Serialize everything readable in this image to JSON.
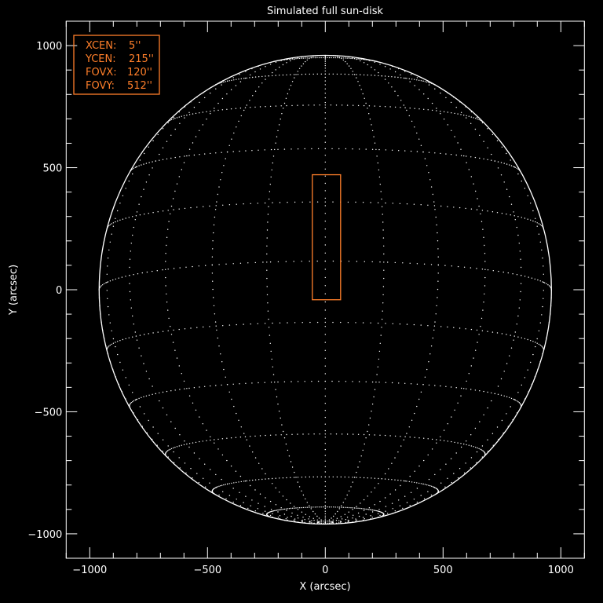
{
  "chart_data": {
    "type": "line",
    "title": "Simulated full sun-disk",
    "xlabel": "X (arcsec)",
    "ylabel": "Y (arcsec)",
    "xlim": [
      -1100,
      1100
    ],
    "ylim": [
      -1100,
      1100
    ],
    "xticks": [
      -1000,
      -500,
      0,
      500,
      1000
    ],
    "yticks": [
      -1000,
      -500,
      0,
      500,
      1000
    ],
    "minor_tick_step": 100,
    "grid": false,
    "sun_disk": {
      "radius_arcsec": 960,
      "grid_step_deg": 15,
      "b0_deg": -7,
      "line_style": "dotted",
      "color": "#ffffff"
    },
    "fov_box": {
      "xcen": 5,
      "ycen": 215,
      "fovx": 120,
      "fovy": 512,
      "color": "#ff7f2a"
    },
    "legend": {
      "placement": "top-left",
      "entries": [
        {
          "label": "XCEN:",
          "value": "5''"
        },
        {
          "label": "YCEN:",
          "value": "215''"
        },
        {
          "label": "FOVX:",
          "value": "120''"
        },
        {
          "label": "FOVY:",
          "value": "512''"
        }
      ]
    }
  }
}
